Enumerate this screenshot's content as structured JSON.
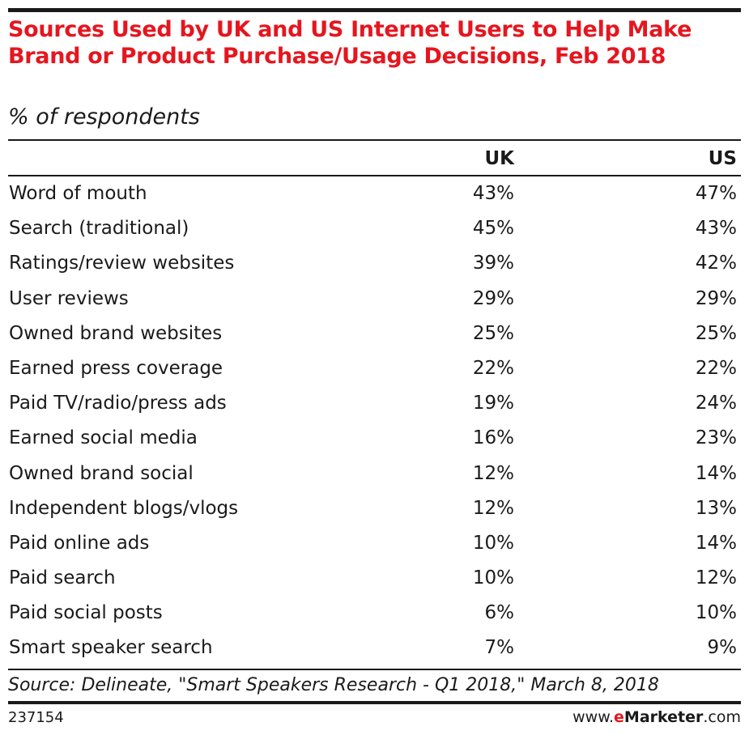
{
  "title": "Sources Used by UK and US Internet Users to Help Make Brand or Product Purchase/Usage Decisions, Feb 2018",
  "subtitle": "% of respondents",
  "columns": [
    "UK",
    "US"
  ],
  "rows": [
    {
      "label": "Word of mouth",
      "uk": "43%",
      "us": "47%"
    },
    {
      "label": "Search (traditional)",
      "uk": "45%",
      "us": "43%"
    },
    {
      "label": "Ratings/review websites",
      "uk": "39%",
      "us": "42%"
    },
    {
      "label": "User reviews",
      "uk": "29%",
      "us": "29%"
    },
    {
      "label": "Owned brand websites",
      "uk": "25%",
      "us": "25%"
    },
    {
      "label": "Earned press coverage",
      "uk": "22%",
      "us": "22%"
    },
    {
      "label": "Paid TV/radio/press ads",
      "uk": "19%",
      "us": "24%"
    },
    {
      "label": "Earned social media",
      "uk": "16%",
      "us": "23%"
    },
    {
      "label": "Owned brand social",
      "uk": "12%",
      "us": "14%"
    },
    {
      "label": "Independent blogs/vlogs",
      "uk": "12%",
      "us": "13%"
    },
    {
      "label": "Paid online ads",
      "uk": "10%",
      "us": "14%"
    },
    {
      "label": "Paid search",
      "uk": "10%",
      "us": "12%"
    },
    {
      "label": "Paid social posts",
      "uk": "6%",
      "us": "10%"
    },
    {
      "label": "Smart speaker search",
      "uk": "7%",
      "us": "9%"
    }
  ],
  "source": "Source: Delineate, \"Smart Speakers Research - Q1 2018,\" March 8, 2018",
  "chart_id": "237154",
  "brand": {
    "prefix": "www.",
    "e": "e",
    "name": "Marketer",
    "suffix": ".com"
  },
  "colors": {
    "title": "#e5161f",
    "text": "#1a1a1a"
  },
  "chart_data": {
    "type": "table",
    "title": "Sources Used by UK and US Internet Users to Help Make Brand or Product Purchase/Usage Decisions, Feb 2018",
    "subtitle": "% of respondents",
    "categories": [
      "Word of mouth",
      "Search (traditional)",
      "Ratings/review websites",
      "User reviews",
      "Owned brand websites",
      "Earned press coverage",
      "Paid TV/radio/press ads",
      "Earned social media",
      "Owned brand social",
      "Independent blogs/vlogs",
      "Paid online ads",
      "Paid search",
      "Paid social posts",
      "Smart speaker search"
    ],
    "series": [
      {
        "name": "UK",
        "values": [
          43,
          45,
          39,
          29,
          25,
          22,
          19,
          16,
          12,
          12,
          10,
          10,
          6,
          7
        ]
      },
      {
        "name": "US",
        "values": [
          47,
          43,
          42,
          29,
          25,
          22,
          24,
          23,
          14,
          13,
          14,
          12,
          10,
          9
        ]
      }
    ]
  }
}
